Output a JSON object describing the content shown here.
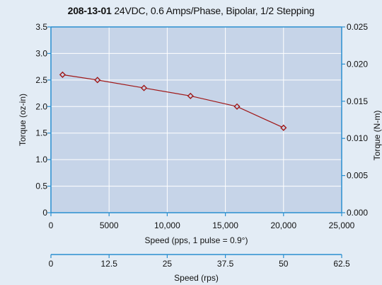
{
  "title": {
    "bold": "208-13-01",
    "rest": " 24VDC, 0.6 Amps/Phase, Bipolar, 1/2 Stepping"
  },
  "colors": {
    "background": "#e3ecf5",
    "plot": "#c6d4e8",
    "axis": "#2a8fd0",
    "grid": "#ffffff",
    "series": "#a01818"
  },
  "chart_data": {
    "type": "line",
    "title": "208-13-01 24VDC, 0.6 Amps/Phase, Bipolar, 1/2 Stepping",
    "xlabel": "Speed (pps, 1 pulse = 0.9°)",
    "ylabel": "Torque (oz-in)",
    "y2label": "Torque (N-m)",
    "x2label": "Speed (rps)",
    "xlim": [
      0,
      25000
    ],
    "ylim": [
      0,
      3.5
    ],
    "y2lim": [
      0,
      0.025
    ],
    "x2lim": [
      0,
      62.5
    ],
    "x_ticks": [
      "0",
      "5000",
      "10,000",
      "15,000",
      "20,000",
      "25,000"
    ],
    "y_ticks": [
      "0",
      "0.5",
      "1.0",
      "1.5",
      "2.0",
      "2.5",
      "3.0",
      "3.5"
    ],
    "y2_ticks": [
      "0.000",
      "0.005",
      "0.010",
      "0.015",
      "0.020",
      "0.025"
    ],
    "x2_ticks": [
      "0",
      "12.5",
      "25",
      "37.5",
      "50",
      "62.5"
    ],
    "grid": true,
    "series": [
      {
        "x": [
          1000,
          4000,
          8000,
          12000,
          16000,
          20000
        ],
        "y": [
          2.6,
          2.5,
          2.35,
          2.2,
          2.0,
          1.6
        ],
        "marker": "diamond"
      }
    ]
  }
}
